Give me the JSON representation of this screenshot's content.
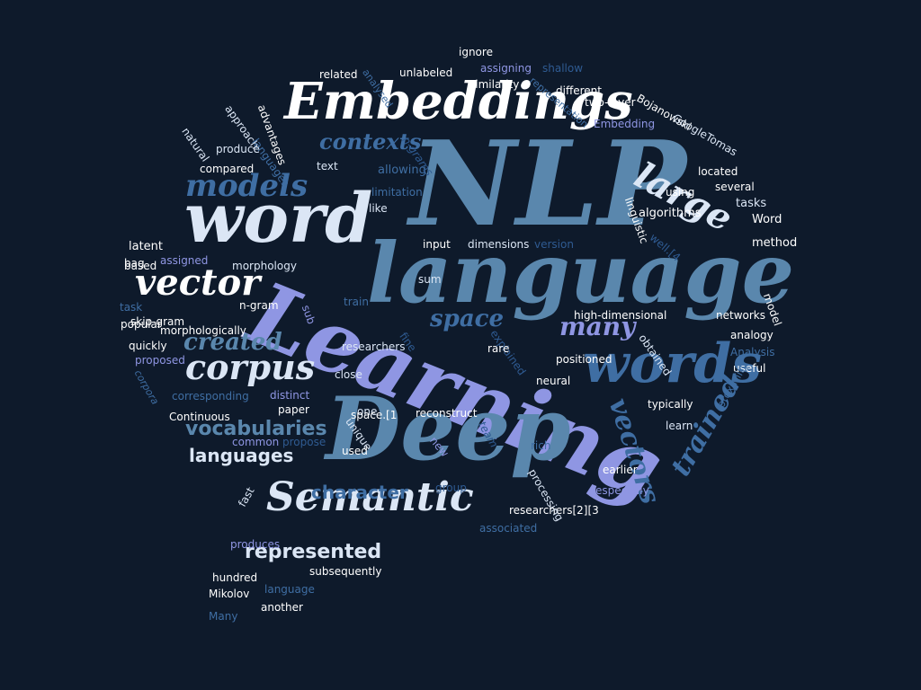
{
  "palette": {
    "background": "#0e1a2b",
    "white": "#ffffff",
    "pale": "#dbe6f5",
    "steel": "#5a87ad",
    "blue": "#3f6ea3",
    "lavender": "#8f96e3",
    "navy": "#2f5b92"
  },
  "words": [
    "NLP",
    "language",
    "Learning",
    "Deep",
    "word",
    "words",
    "Embeddings",
    "Semantic",
    "corpus",
    "vector",
    "models",
    "large",
    "vectors",
    "many",
    "space",
    "created",
    "contexts",
    "vocabularies",
    "languages",
    "character",
    "represented",
    "trained",
    "n-grams",
    "text",
    "compared",
    "allowing",
    "limitation",
    "like",
    "input",
    "dimensions",
    "version",
    "algorithms",
    "tasks",
    "Word",
    "method",
    "morphology",
    "latent",
    "based",
    "assigned",
    "sum",
    "train",
    "researchers",
    "high-dimensional",
    "networks",
    "analogy",
    "Analysis",
    "useful",
    "obtained",
    "explained",
    "rare",
    "fine",
    "sub",
    "task",
    "skip-gram",
    "n-gram",
    "popular",
    "morphologically",
    "quickly",
    "proposed",
    "corpora",
    "corresponding",
    "distinct",
    "close",
    "paper",
    "one",
    "reconstruct",
    "unique",
    "space.[1",
    "common",
    "propose",
    "used",
    "group",
    "new",
    "Continuous",
    "positioned",
    "neural",
    "typically",
    "learn",
    "proximity",
    "earlier",
    "especially",
    "researchers[2][3",
    "associated",
    "fast",
    "produces",
    "subsequently",
    "hundred",
    "language",
    "Mikolov",
    "another",
    "Many",
    "rich",
    "team",
    "processing",
    "related",
    "unlabeled",
    "ignore",
    "assigning",
    "shallow",
    "analysed",
    "similarity",
    "representation",
    "different",
    "two-layer",
    "Embedding",
    "Bojanowski",
    "GoogleTomas",
    "located",
    "several",
    "using",
    "linguistic",
    "well.[4",
    "model",
    "advantages",
    "approach",
    "natural",
    "languages",
    "produce",
    "bag"
  ]
}
